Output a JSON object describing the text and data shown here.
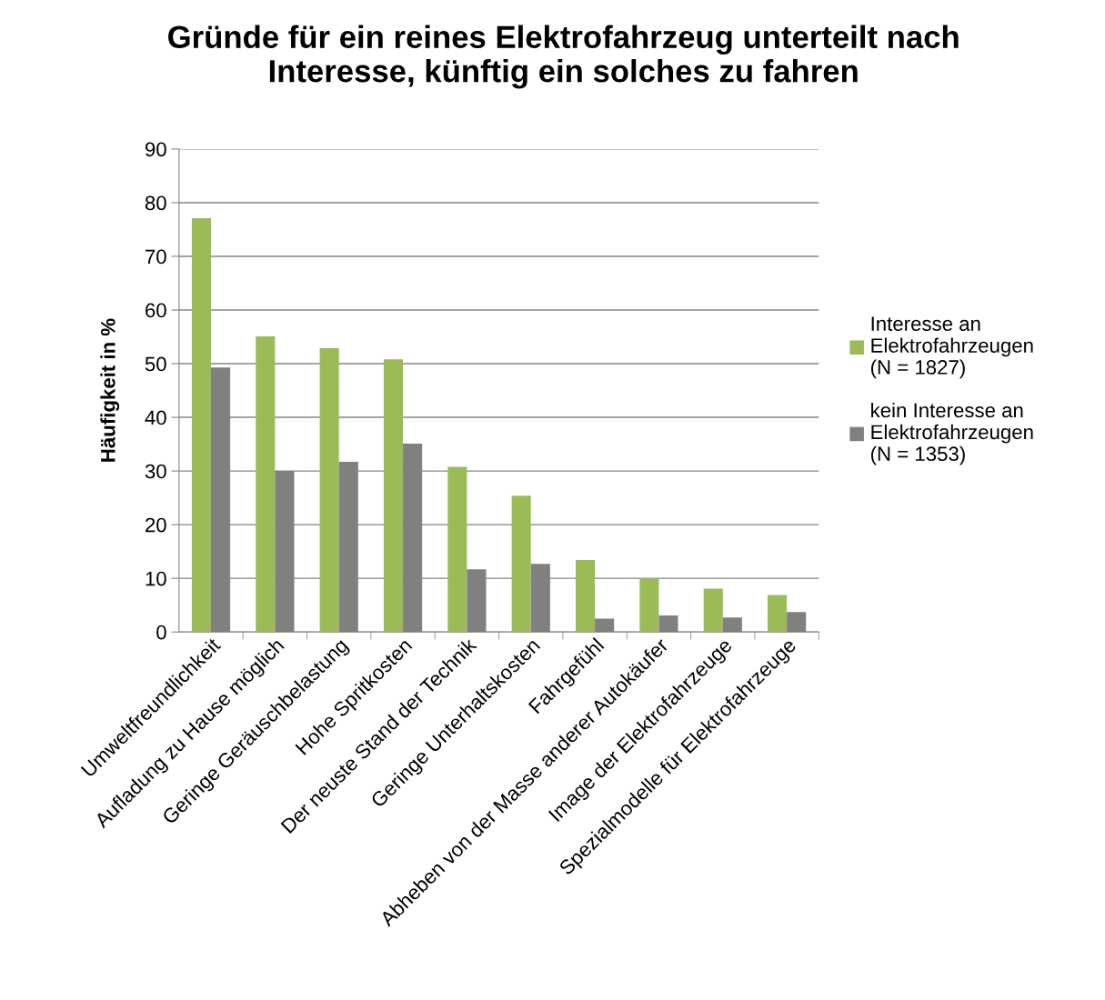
{
  "chart_data": {
    "type": "bar",
    "title": "Gründe für ein reines Elektrofahrzeug unterteilt nach\nInteresse, künftig ein solches zu fahren",
    "ylabel": "Häufigkeit in %",
    "categories": [
      "Umweltfreundlichkeit",
      "Aufladung zu Hause möglich",
      "Geringe Geräuschbelastung",
      "Hohe Spritkosten",
      "Der neuste Stand der Technik",
      "Geringe Unterhaltskosten",
      "Fahrgefühl",
      "Abheben von der Masse anderer Autokäufer",
      "Image der Elektrofahrzeuge",
      "Spezialmodelle für Elektrofahrzeuge"
    ],
    "series": [
      {
        "name": "Interesse an\nElektrofahrzeugen\n(N = 1827)",
        "color": "#9bbb59",
        "values": [
          77.1,
          55.1,
          52.9,
          50.8,
          30.8,
          25.4,
          13.4,
          10.0,
          8.1,
          6.9
        ]
      },
      {
        "name": "kein Interesse an\nElektrofahrzeugen\n(N = 1353)",
        "color": "#808080",
        "values": [
          49.3,
          30.0,
          31.7,
          35.1,
          11.7,
          12.7,
          2.5,
          3.1,
          2.7,
          3.7
        ]
      }
    ],
    "ylim": [
      0,
      90
    ],
    "yticks": [
      0,
      10,
      20,
      30,
      40,
      50,
      60,
      70,
      80,
      90
    ],
    "grid": "y",
    "legend": "right"
  }
}
